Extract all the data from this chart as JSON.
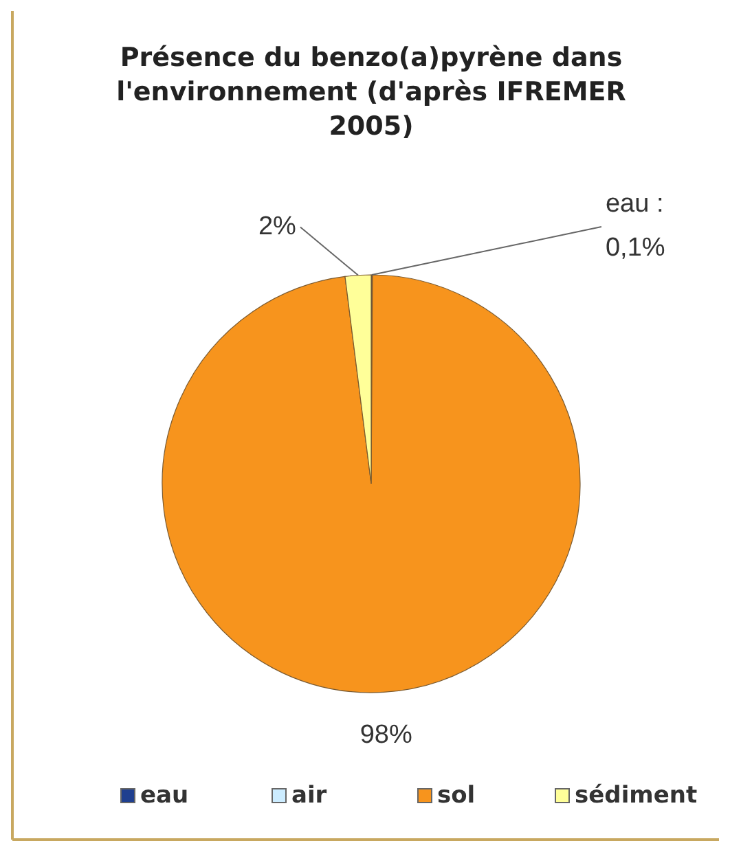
{
  "chart_data": {
    "type": "pie",
    "title": "Présence du benzo(a)pyrène dans l'environnement (d'après IFREMER 2005)",
    "categories": [
      "eau",
      "air",
      "sol",
      "sédiment"
    ],
    "values": [
      0.1,
      0,
      98,
      2
    ],
    "colors": [
      "#1f3f8f",
      "#ccecff",
      "#f7941d",
      "#ffff99"
    ],
    "value_labels": [
      "eau : 0,1%",
      null,
      "98%",
      "2%"
    ],
    "legend": "bottom"
  }
}
